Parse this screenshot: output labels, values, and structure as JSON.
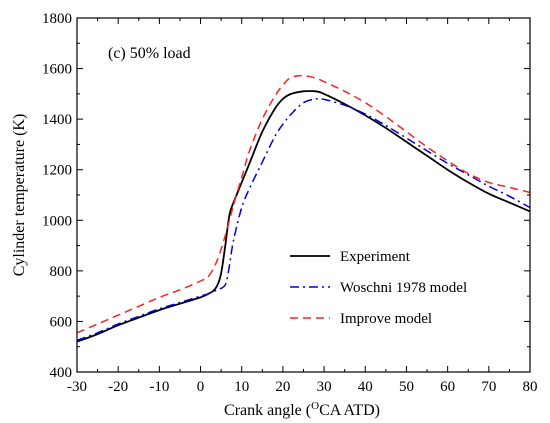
{
  "chart_data": {
    "type": "line",
    "annotation": "(c) 50% load",
    "xlabel_prefix": "Crank angle (",
    "xlabel_superscript": "O",
    "xlabel_suffix": "CA ATD)",
    "ylabel": "Cylinder temperature (K)",
    "xlim": [
      -30,
      80
    ],
    "ylim": [
      400,
      1800
    ],
    "xticks": [
      -30,
      -20,
      -10,
      0,
      10,
      20,
      30,
      40,
      50,
      60,
      70,
      80
    ],
    "yticks": [
      400,
      600,
      800,
      1000,
      1200,
      1400,
      1600,
      1800
    ],
    "grid": false,
    "legend_position": "center-right",
    "series": [
      {
        "name": "Experiment",
        "color": "#000000",
        "dash": "solid",
        "x": [
          -30,
          -25,
          -20,
          -15,
          -10,
          -5,
          0,
          2,
          3,
          4,
          5,
          6,
          7,
          8,
          10,
          12,
          15,
          18,
          20,
          22,
          25,
          28,
          30,
          35,
          40,
          45,
          50,
          55,
          60,
          65,
          70,
          75,
          80
        ],
        "y": [
          520,
          550,
          585,
          615,
          645,
          670,
          695,
          710,
          720,
          740,
          790,
          900,
          1020,
          1070,
          1150,
          1230,
          1350,
          1440,
          1480,
          1500,
          1510,
          1510,
          1500,
          1460,
          1415,
          1365,
          1310,
          1255,
          1200,
          1150,
          1105,
          1070,
          1035
        ]
      },
      {
        "name": "Woschni 1978 model",
        "color": "#0000dd",
        "dash": "dashdot",
        "x": [
          -30,
          -25,
          -20,
          -15,
          -10,
          -5,
          0,
          2,
          4,
          6,
          7,
          8,
          10,
          12,
          15,
          18,
          20,
          22,
          25,
          28,
          30,
          35,
          40,
          45,
          50,
          55,
          60,
          65,
          70,
          75,
          80
        ],
        "y": [
          525,
          555,
          590,
          620,
          650,
          675,
          700,
          710,
          725,
          745,
          820,
          920,
          1050,
          1130,
          1230,
          1330,
          1380,
          1420,
          1465,
          1480,
          1478,
          1455,
          1420,
          1375,
          1325,
          1275,
          1225,
          1180,
          1135,
          1095,
          1050
        ]
      },
      {
        "name": "Improve model",
        "color": "#ff2020",
        "dash": "dashed",
        "x": [
          -30,
          -25,
          -20,
          -15,
          -10,
          -5,
          0,
          2,
          4,
          6,
          8,
          10,
          12,
          15,
          18,
          20,
          22,
          25,
          28,
          30,
          35,
          40,
          45,
          50,
          55,
          60,
          65,
          70,
          75,
          80
        ],
        "y": [
          555,
          590,
          625,
          660,
          695,
          725,
          760,
          780,
          840,
          940,
          1060,
          1170,
          1280,
          1400,
          1490,
          1535,
          1565,
          1572,
          1562,
          1548,
          1510,
          1465,
          1410,
          1350,
          1290,
          1235,
          1185,
          1150,
          1130,
          1110
        ]
      }
    ]
  }
}
